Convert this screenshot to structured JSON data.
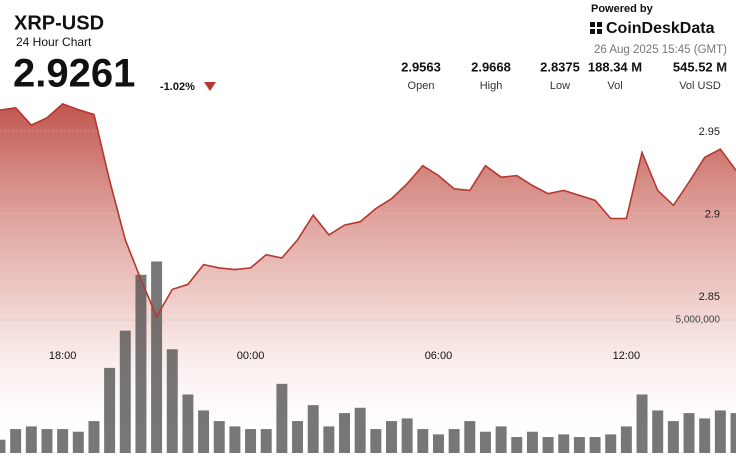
{
  "header": {
    "symbol": "XRP-USD",
    "subtitle": "24 Hour Chart",
    "price": "2.9261",
    "change": "-1.02%",
    "powered_by": "Powered by",
    "brand": "CoinDeskData",
    "timestamp": "26 Aug 2025 15:45 (GMT)",
    "stats": [
      {
        "value": "2.9563",
        "label": "Open"
      },
      {
        "value": "2.9668",
        "label": "High"
      },
      {
        "value": "2.8375",
        "label": "Low"
      },
      {
        "value": "188.34 M",
        "label": "Vol"
      },
      {
        "value": "545.52 M",
        "label": "Vol USD"
      }
    ]
  },
  "chart_data": {
    "type": "line",
    "x": [
      16,
      16.5,
      17,
      17.5,
      18,
      18.5,
      19,
      19.5,
      20,
      20.5,
      21,
      21.5,
      22,
      22.5,
      23,
      23.5,
      24,
      24.5,
      25,
      25.5,
      26,
      26.5,
      27,
      27.5,
      28,
      28.5,
      29,
      29.5,
      30,
      30.5,
      31,
      31.5,
      32,
      32.5,
      33,
      33.5,
      34,
      34.5,
      35,
      35.5,
      36,
      36.5,
      37,
      37.5,
      38,
      38.5,
      39,
      39.5
    ],
    "series": [
      {
        "type": "line",
        "color": "#b5372e",
        "values": [
          2.9627,
          2.964,
          2.9536,
          2.958,
          2.9664,
          2.963,
          2.96,
          2.92,
          2.884,
          2.86,
          2.8375,
          2.854,
          2.857,
          2.869,
          2.867,
          2.866,
          2.867,
          2.875,
          2.873,
          2.884,
          2.899,
          2.887,
          2.893,
          2.895,
          2.903,
          2.909,
          2.918,
          2.929,
          2.923,
          2.915,
          2.914,
          2.929,
          2.922,
          2.923,
          2.917,
          2.912,
          2.914,
          2.911,
          2.908,
          2.897,
          2.897,
          2.937,
          2.914,
          2.905,
          2.919,
          2.934,
          2.939,
          2.9261
        ]
      },
      {
        "type": "bar",
        "axis": "y2",
        "color": "#4a4a4a",
        "values": [
          500000,
          900000,
          1000000,
          900000,
          900000,
          800000,
          1200000,
          3200000,
          4600000,
          6700000,
          7200000,
          3900000,
          2200000,
          1600000,
          1200000,
          1000000,
          900000,
          900000,
          2600000,
          1200000,
          1800000,
          1000000,
          1500000,
          1700000,
          900000,
          1200000,
          1300000,
          900000,
          700000,
          900000,
          1200000,
          800000,
          1000000,
          600000,
          800000,
          600000,
          700000,
          600000,
          600000,
          700000,
          1000000,
          2200000,
          1600000,
          1200000,
          1500000,
          1300000,
          1600000,
          1500000
        ]
      }
    ],
    "xlim": [
      16,
      39.5
    ],
    "xticks": [
      {
        "value": 18,
        "label": "18:00"
      },
      {
        "value": 24,
        "label": "00:00"
      },
      {
        "value": 30,
        "label": "06:00"
      },
      {
        "value": 36,
        "label": "12:00"
      }
    ],
    "ylim": [
      2.84,
      2.97
    ],
    "yticks": [
      2.85,
      2.9,
      2.95
    ],
    "y2lim": [
      0,
      7500000
    ],
    "y2ticks": [
      {
        "value": 5000000,
        "label": "5,000,000"
      }
    ],
    "grid": true
  }
}
